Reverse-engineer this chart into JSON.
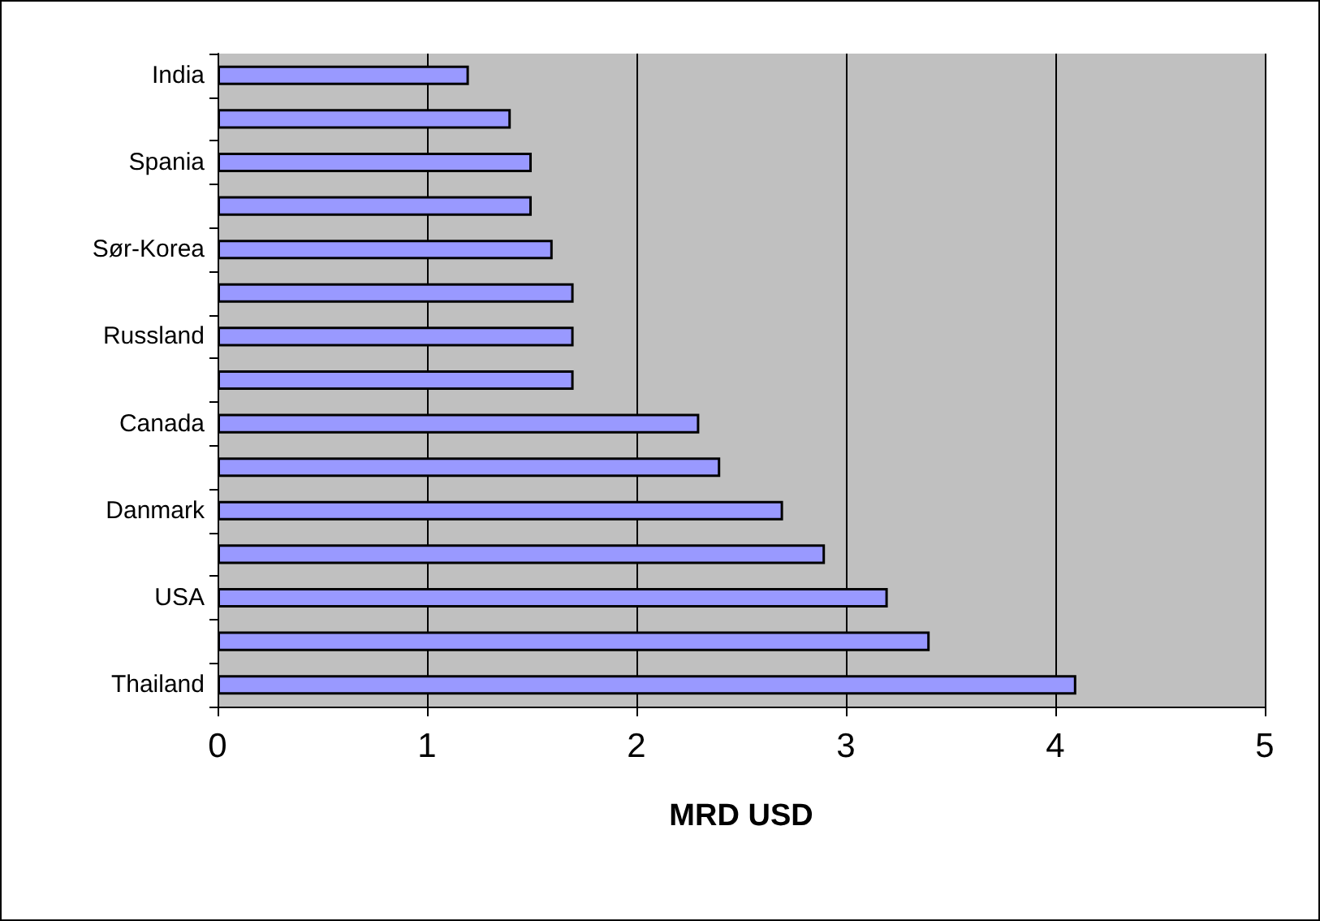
{
  "chart_data": {
    "type": "bar",
    "orientation": "horizontal",
    "xlabel": "MRD USD",
    "categories": [
      "India",
      null,
      "Spania",
      null,
      "Sør-Korea",
      null,
      "Russland",
      null,
      "Canada",
      null,
      "Danmark",
      null,
      "USA",
      null,
      "Thailand"
    ],
    "values": [
      1.2,
      1.4,
      1.5,
      1.5,
      1.6,
      1.7,
      1.7,
      1.7,
      2.3,
      2.4,
      2.7,
      2.9,
      3.2,
      3.4,
      4.1
    ],
    "color": "#9999ff",
    "xlim": [
      0,
      5
    ],
    "xticks": [
      0,
      1,
      2,
      3,
      4,
      5
    ],
    "grid": "x"
  }
}
